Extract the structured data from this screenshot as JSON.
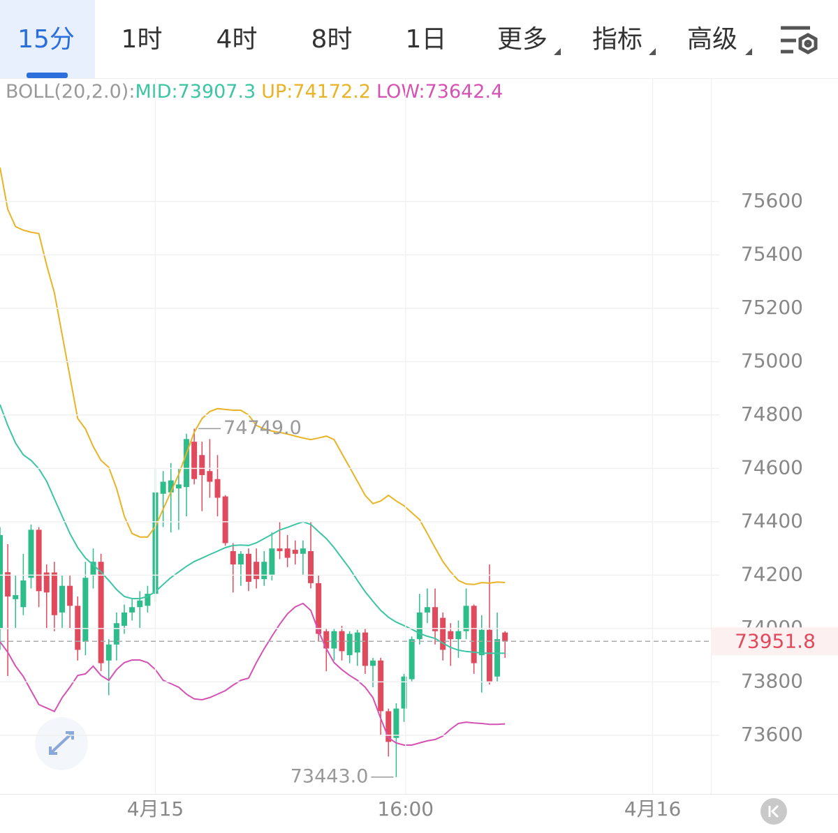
{
  "tabs": [
    "15分",
    "1时",
    "4时",
    "8时",
    "1日",
    "更多",
    "指标",
    "高级"
  ],
  "chart_data": {
    "type": "candlestick",
    "indicator_label": "BOLL(20,2.0):",
    "up_color": "#e04a5c",
    "down_color": "#2ebd8a",
    "open": [
      74000,
      74211,
      74110,
      74080,
      74190,
      74370,
      74210,
      74210,
      74060,
      74160,
      74085,
      73950,
      74200,
      74250,
      73880,
      73940,
      74010,
      74060,
      74080,
      74085,
      74130,
      74505,
      74510,
      74525,
      74530,
      74700,
      74650,
      74590,
      74560,
      74495,
      74290,
      74240,
      74280,
      74250,
      74185,
      74200,
      74300,
      74300,
      74295,
      74280,
      74290,
      74170,
      73990,
      73925,
      73990,
      73900,
      73910,
      73985,
      73860,
      73880,
      73690,
      73590,
      73700,
      73810,
      73960,
      74060,
      74080,
      74040,
      73990,
      73960,
      73990,
      74085,
      73900,
      73995,
      73820,
      73985
    ],
    "high": [
      74380,
      74316,
      74200,
      74280,
      74390,
      74380,
      74240,
      74250,
      74200,
      74200,
      74120,
      74250,
      74300,
      74280,
      73960,
      74060,
      74090,
      74110,
      74140,
      74160,
      74600,
      74590,
      74620,
      74600,
      74730,
      74749,
      74700,
      74710,
      74650,
      74500,
      74320,
      74290,
      74300,
      74300,
      74290,
      74360,
      74400,
      74350,
      74330,
      74330,
      74400,
      74200,
      74000,
      74000,
      74010,
      73990,
      73995,
      74000,
      73890,
      73890,
      73700,
      73720,
      73830,
      73970,
      74130,
      74150,
      74150,
      74060,
      74020,
      74030,
      74150,
      74090,
      74050,
      74240,
      74060,
      73990
    ],
    "low": [
      73920,
      73822,
      74000,
      74050,
      74150,
      74080,
      74000,
      73990,
      74000,
      74000,
      73880,
      73900,
      74150,
      73840,
      73750,
      73880,
      73980,
      74030,
      74000,
      74060,
      74100,
      74380,
      74360,
      74370,
      74420,
      74540,
      74440,
      74490,
      74420,
      74310,
      74135,
      74160,
      74140,
      74150,
      74160,
      74180,
      74260,
      74230,
      74240,
      74200,
      74150,
      73950,
      73840,
      73880,
      73880,
      73870,
      73860,
      73830,
      73780,
      73600,
      73520,
      73443,
      73650,
      73800,
      73940,
      74020,
      73940,
      73880,
      73860,
      73890,
      73960,
      73830,
      73760,
      73790,
      73800,
      73890
    ],
    "close": [
      74350,
      74120,
      74125,
      74180,
      74370,
      74140,
      74135,
      74050,
      74160,
      74085,
      73920,
      74190,
      74250,
      73870,
      73940,
      74020,
      74060,
      74080,
      74105,
      74130,
      74510,
      74550,
      74555,
      74540,
      74710,
      74560,
      74575,
      74550,
      74490,
      74320,
      74240,
      74280,
      74175,
      74185,
      74250,
      74300,
      74290,
      74265,
      74280,
      74300,
      74170,
      73980,
      73925,
      73990,
      73915,
      73980,
      73985,
      73860,
      73880,
      73690,
      73575,
      73700,
      73820,
      73960,
      74060,
      74080,
      73990,
      73920,
      73960,
      73990,
      74085,
      73870,
      73995,
      73800,
      73960,
      73951.8
    ],
    "series": [
      {
        "name": "MID:73907.3",
        "color": "#3cc5a3",
        "values": [
          74839,
          74761,
          74695,
          74651,
          74630,
          74599,
          74552,
          74486,
          74421,
          74356,
          74303,
          74264,
          74238,
          74212,
          74180,
          74146,
          74120,
          74112,
          74112,
          74120,
          74138,
          74165,
          74191,
          74212,
          74233,
          74251,
          74264,
          74277,
          74290,
          74303,
          74311,
          74313,
          74311,
          74321,
          74337,
          74353,
          74369,
          74379,
          74390,
          74400,
          74390,
          74363,
          74337,
          74303,
          74264,
          74225,
          74180,
          74138,
          74102,
          74068,
          74042,
          74024,
          74011,
          73997,
          73982,
          73971,
          73963,
          73945,
          73929,
          73919,
          73914,
          73911,
          73908,
          73907,
          73907,
          73907.3
        ]
      },
      {
        "name": "UP:74172.2",
        "color": "#e8b325",
        "values": [
          75728,
          75571,
          75506,
          75493,
          75485,
          75480,
          75362,
          75258,
          75101,
          74944,
          74787,
          74748,
          74682,
          74630,
          74604,
          74525,
          74421,
          74356,
          74343,
          74343,
          74382,
          74447,
          74512,
          74578,
          74656,
          74735,
          74787,
          74813,
          74824,
          74821,
          74818,
          74818,
          74800,
          74761,
          74748,
          74740,
          74735,
          74729,
          74721,
          74714,
          74708,
          74714,
          74721,
          74708,
          74656,
          74604,
          74552,
          74499,
          74468,
          74478,
          74499,
          74478,
          74460,
          74434,
          74408,
          74356,
          74303,
          74251,
          74212,
          74180,
          74167,
          74165,
          74172,
          74170,
          74174,
          74172.2
        ]
      },
      {
        "name": "LOW:73642.4",
        "color": "#d552b4",
        "values": [
          73950,
          73911,
          73859,
          73820,
          73767,
          73715,
          73702,
          73689,
          73741,
          73780,
          73824,
          73830,
          73859,
          73824,
          73806,
          73846,
          73872,
          73882,
          73882,
          73872,
          73846,
          73806,
          73793,
          73780,
          73754,
          73736,
          73733,
          73741,
          73754,
          73767,
          73788,
          73806,
          73814,
          73872,
          73924,
          73971,
          74016,
          74055,
          74081,
          74094,
          74068,
          73990,
          73924,
          73872,
          73846,
          73824,
          73806,
          73780,
          73741,
          73663,
          73590,
          73571,
          73563,
          73563,
          73571,
          73579,
          73584,
          73597,
          73623,
          73644,
          73649,
          73646,
          73644,
          73641,
          73641,
          73642.4
        ]
      }
    ],
    "xlim": [
      0,
      91.5
    ],
    "xticks": [
      {
        "value": 20,
        "label": "4月15"
      },
      {
        "value": 52.2,
        "label": "16:00"
      },
      {
        "value": 84,
        "label": "4月16"
      }
    ],
    "ylim": [
      73380,
      76060
    ],
    "yticks": [
      73600,
      73800,
      74000,
      74200,
      74400,
      74600,
      74800,
      75000,
      75200,
      75400,
      75600
    ],
    "grid": true,
    "last_price": 73951.8,
    "high_marker": {
      "value": 74749,
      "label": "74749.0"
    },
    "low_marker": {
      "value": 73443,
      "label": "73443.0"
    }
  }
}
